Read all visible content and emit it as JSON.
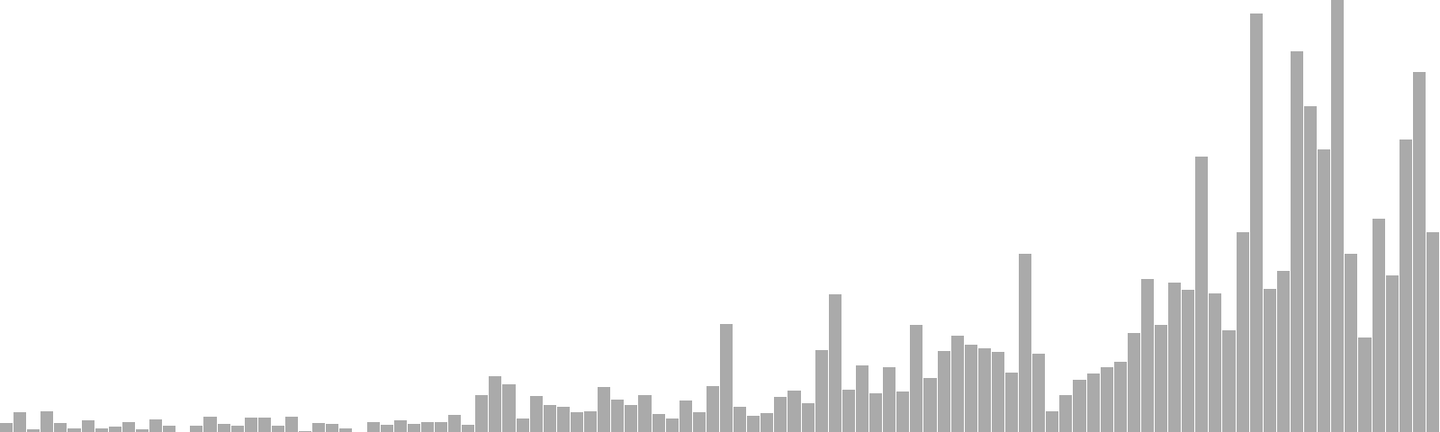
{
  "chart_data": {
    "type": "bar",
    "bar_color": "#aaaaaa",
    "background_color": "#ffffff",
    "grid": false,
    "legend": "none",
    "ylim": [
      0,
      480
    ],
    "values": [
      10,
      22,
      3,
      23,
      10,
      4,
      13,
      4,
      6,
      11,
      3,
      14,
      7,
      0,
      7,
      17,
      9,
      7,
      16,
      16,
      7,
      17,
      1,
      10,
      9,
      4,
      0,
      11,
      8,
      13,
      9,
      11,
      11,
      19,
      8,
      41,
      62,
      53,
      15,
      40,
      30,
      28,
      22,
      23,
      50,
      36,
      30,
      41,
      20,
      15,
      35,
      22,
      51,
      120,
      28,
      18,
      21,
      39,
      46,
      32,
      91,
      153,
      47,
      74,
      43,
      72,
      45,
      119,
      60,
      90,
      107,
      97,
      93,
      89,
      66,
      198,
      87,
      23,
      41,
      58,
      65,
      72,
      78,
      110,
      170,
      119,
      166,
      158,
      306,
      154,
      113,
      222,
      465,
      159,
      179,
      423,
      362,
      314,
      480,
      198,
      105,
      237,
      174,
      325,
      400,
      222
    ]
  }
}
